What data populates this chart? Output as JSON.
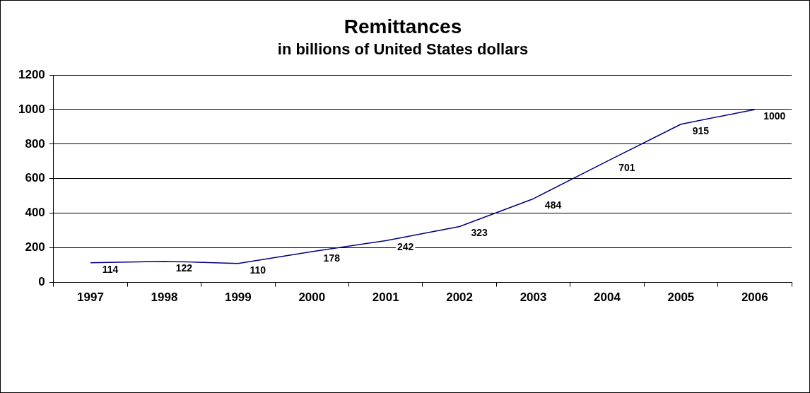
{
  "chart_data": {
    "type": "line",
    "title": "Remittances",
    "subtitle": "in billions of United States dollars",
    "categories": [
      "1997",
      "1998",
      "1999",
      "2000",
      "2001",
      "2002",
      "2003",
      "2004",
      "2005",
      "2006"
    ],
    "series": [
      {
        "color": "#000080",
        "values": [
          114,
          122,
          110,
          178,
          242,
          323,
          484,
          701,
          915,
          1000
        ]
      }
    ],
    "ylim": [
      0,
      1200
    ],
    "yticks": [
      0,
      200,
      400,
      600,
      800,
      1000,
      1200
    ],
    "grid": "y",
    "legend": false,
    "marker": "none",
    "line_style": "solid",
    "data_labels": true
  }
}
